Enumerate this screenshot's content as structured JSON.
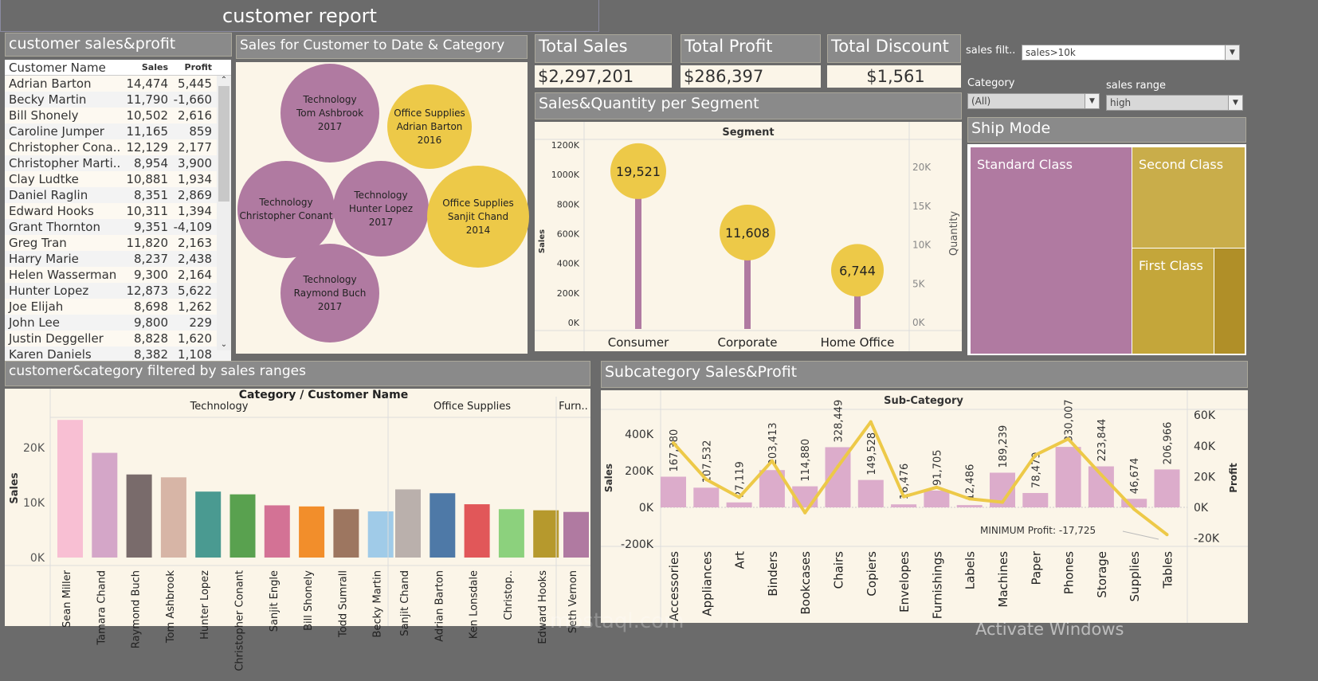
{
  "title": "customer report",
  "customer_table": {
    "header": "customer sales&profit",
    "columns": [
      "Customer Name",
      "Sales",
      "Profit"
    ],
    "rows": [
      [
        "Adrian Barton",
        "14,474",
        "5,445"
      ],
      [
        "Becky Martin",
        "11,790",
        "-1,660"
      ],
      [
        "Bill Shonely",
        "10,502",
        "2,616"
      ],
      [
        "Caroline Jumper",
        "11,165",
        "859"
      ],
      [
        "Christopher Cona..",
        "12,129",
        "2,177"
      ],
      [
        "Christopher Marti..",
        "8,954",
        "3,900"
      ],
      [
        "Clay Ludtke",
        "10,881",
        "1,934"
      ],
      [
        "Daniel Raglin",
        "8,351",
        "2,869"
      ],
      [
        "Edward Hooks",
        "10,311",
        "1,394"
      ],
      [
        "Grant Thornton",
        "9,351",
        "-4,109"
      ],
      [
        "Greg Tran",
        "11,820",
        "2,163"
      ],
      [
        "Harry Marie",
        "8,237",
        "2,438"
      ],
      [
        "Helen Wasserman",
        "9,300",
        "2,164"
      ],
      [
        "Hunter Lopez",
        "12,873",
        "5,622"
      ],
      [
        "Joe Elijah",
        "8,698",
        "1,262"
      ],
      [
        "John Lee",
        "9,800",
        "229"
      ],
      [
        "Justin Deggeller",
        "8,828",
        "1,620"
      ],
      [
        "Karen Daniels",
        "8,382",
        "1,108"
      ]
    ]
  },
  "bubbles": {
    "header": "Sales for Customer to Date & Category",
    "items": [
      {
        "category": "Technology",
        "customer": "Tom Ashbrook",
        "year": "2017",
        "color": "#b07aa1"
      },
      {
        "category": "Office Supplies",
        "customer": "Adrian Barton",
        "year": "2016",
        "color": "#edc948"
      },
      {
        "category": "Technology",
        "customer": "Christopher Conant",
        "year": "",
        "color": "#b07aa1"
      },
      {
        "category": "Technology",
        "customer": "Hunter Lopez",
        "year": "2017",
        "color": "#b07aa1"
      },
      {
        "category": "Office Supplies",
        "customer": "Sanjit Chand",
        "year": "2014",
        "color": "#edc948"
      },
      {
        "category": "Technology",
        "customer": "Raymond Buch",
        "year": "2017",
        "color": "#b07aa1"
      }
    ]
  },
  "kpis": [
    {
      "label": "Total Sales",
      "value": "$2,297,201"
    },
    {
      "label": "Total Profit",
      "value": "$286,397"
    },
    {
      "label": "Total Discount",
      "value": "$1,561"
    }
  ],
  "filters": {
    "sales_filter_label": "sales filt..",
    "sales_filter_value": "sales>10k",
    "category_label": "Category",
    "category_value": "(All)",
    "range_label": "sales range",
    "range_value": "high"
  },
  "segment_chart": {
    "header": "Sales&Quantity per Segment",
    "type": "bar",
    "title": "Segment",
    "categories": [
      "Consumer",
      "Corporate",
      "Home Office"
    ],
    "sales": [
      1161401,
      706146,
      429653
    ],
    "quantity": [
      19521,
      11608,
      6744
    ],
    "quantity_labels": [
      "19,521",
      "11,608",
      "6,744"
    ],
    "ylabel": "Sales",
    "y2label": "Quantity",
    "yticks": [
      "0K",
      "200K",
      "400K",
      "600K",
      "800K",
      "1000K",
      "1200K"
    ],
    "y2ticks": [
      "0K",
      "5K",
      "10K",
      "15K",
      "20K"
    ],
    "ylim": [
      0,
      1200000
    ],
    "y2lim": [
      0,
      23000
    ],
    "bar_color": "#b07aa1",
    "circle_color": "#edc948"
  },
  "ship_mode": {
    "header": "Ship Mode",
    "items": [
      {
        "label": "Standard Class",
        "color": "#b07aa1"
      },
      {
        "label": "Second Class",
        "color": "#c9ad4a"
      },
      {
        "label": "First Class",
        "color": "#c4a63a"
      },
      {
        "label": "",
        "color": "#b08f28"
      }
    ]
  },
  "customer_category_chart": {
    "header": "customer&category filtered by sales ranges",
    "type": "bar",
    "title": "Category  /  Customer Name",
    "ylabel": "Sales",
    "yticks": [
      "0K",
      "10K",
      "20K"
    ],
    "ylim": [
      0,
      27000
    ],
    "groups": [
      {
        "name": "Technology",
        "customers": [
          "Sean Miller",
          "Tamara Chand",
          "Raymond Buch",
          "Tom Ashbrook",
          "Hunter Lopez",
          "Christopher Conant",
          "Sanjit Engle",
          "Bill Shonely",
          "Todd Sumrall",
          "Becky Martin"
        ],
        "values": [
          25043,
          19052,
          15117,
          14596,
          12000,
          11500,
          9500,
          9300,
          8800,
          8400
        ]
      },
      {
        "name": "Office Supplies",
        "customers": [
          "Sanjit Chand",
          "Adrian Barton",
          "Ken Lonsdale",
          "Christop..",
          "Edward Hooks"
        ],
        "values": [
          12400,
          11700,
          9700,
          8800,
          8600
        ]
      },
      {
        "name": "Furn..",
        "customers": [
          "Seth Vernon"
        ],
        "values": [
          8300
        ]
      }
    ],
    "colors": [
      "#f8bfd3",
      "#d4a6c8",
      "#796b6b",
      "#d7b5a6",
      "#4a9a91",
      "#59a14f",
      "#d37295",
      "#f28e2b",
      "#9d7660",
      "#a0cbe8",
      "#bab0ac",
      "#4e79a7",
      "#e15759",
      "#8cd17d",
      "#b6992d",
      "#b07aa1"
    ]
  },
  "subcategory_chart": {
    "header": "Subcategory Sales&Profit",
    "type": "bar+line",
    "title": "Sub-Category",
    "ylabel": "Sales",
    "y2label": "Profit",
    "categories": [
      "Accessories",
      "Appliances",
      "Art",
      "Binders",
      "Bookcases",
      "Chairs",
      "Copiers",
      "Envelopes",
      "Furnishings",
      "Labels",
      "Machines",
      "Paper",
      "Phones",
      "Storage",
      "Supplies",
      "Tables"
    ],
    "sales": [
      167380,
      107532,
      27119,
      203413,
      114880,
      328449,
      149528,
      16476,
      91705,
      12486,
      189239,
      78479,
      330007,
      223844,
      46674,
      206966
    ],
    "sales_labels": [
      "167,380",
      "107,532",
      "27,119",
      "203,413",
      "114,880",
      "328,449",
      "149,528",
      "16,476",
      "91,705",
      "12,486",
      "189,239",
      "78,479",
      "330,007",
      "223,844",
      "46,674",
      "206,966"
    ],
    "profit": [
      41937,
      18138,
      6528,
      30222,
      -3473,
      26590,
      55618,
      6964,
      13059,
      5546,
      3385,
      34054,
      44516,
      21279,
      -1189,
      -17725
    ],
    "yticks": [
      "-200K",
      "0K",
      "200K",
      "400K"
    ],
    "y2ticks": [
      "-20K",
      "0K",
      "20K",
      "40K",
      "60K"
    ],
    "ylim": [
      -270000,
      480000
    ],
    "y2lim": [
      -23000,
      65000
    ],
    "annotation": "MINIMUM Profit: -17,725",
    "bar_color": "#dcaccb",
    "line_color": "#edc948"
  },
  "watermark": "mostaql.com",
  "os_overlay": "Activate Windows"
}
